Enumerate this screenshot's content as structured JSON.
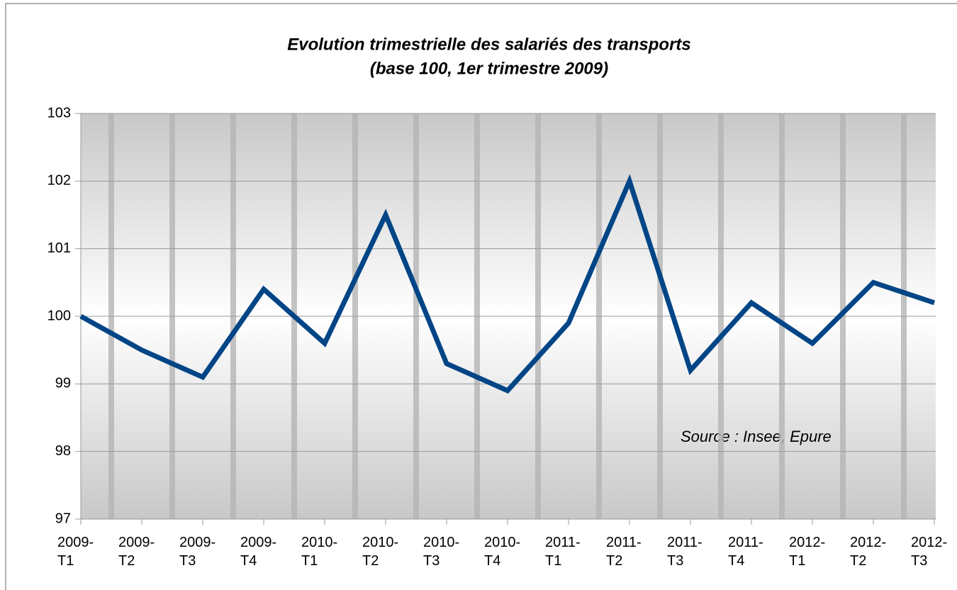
{
  "chart_data": {
    "type": "line",
    "title": "Evolution trimestrielle des salariés des transports",
    "subtitle": "(base 100, 1er trimestre 2009)",
    "annotation": "Source : Insee, Epure",
    "categories": [
      "2009- T1",
      "2009- T2",
      "2009- T3",
      "2009- T4",
      "2010- T1",
      "2010- T2",
      "2010- T3",
      "2010- T4",
      "2011- T1",
      "2011- T2",
      "2011- T3",
      "2011- T4",
      "2012- T1",
      "2012- T2",
      "2012- T3"
    ],
    "series": [
      {
        "color": "#004586",
        "values": [
          100,
          99.5,
          99.1,
          100.4,
          99.6,
          101.5,
          99.3,
          98.9,
          99.9,
          102,
          99.2,
          100.2,
          99.6,
          100.5,
          100.2
        ]
      }
    ],
    "ylim": [
      97,
      103
    ],
    "yticks": [
      97,
      98,
      99,
      100,
      101,
      102,
      103
    ],
    "grid": true
  }
}
